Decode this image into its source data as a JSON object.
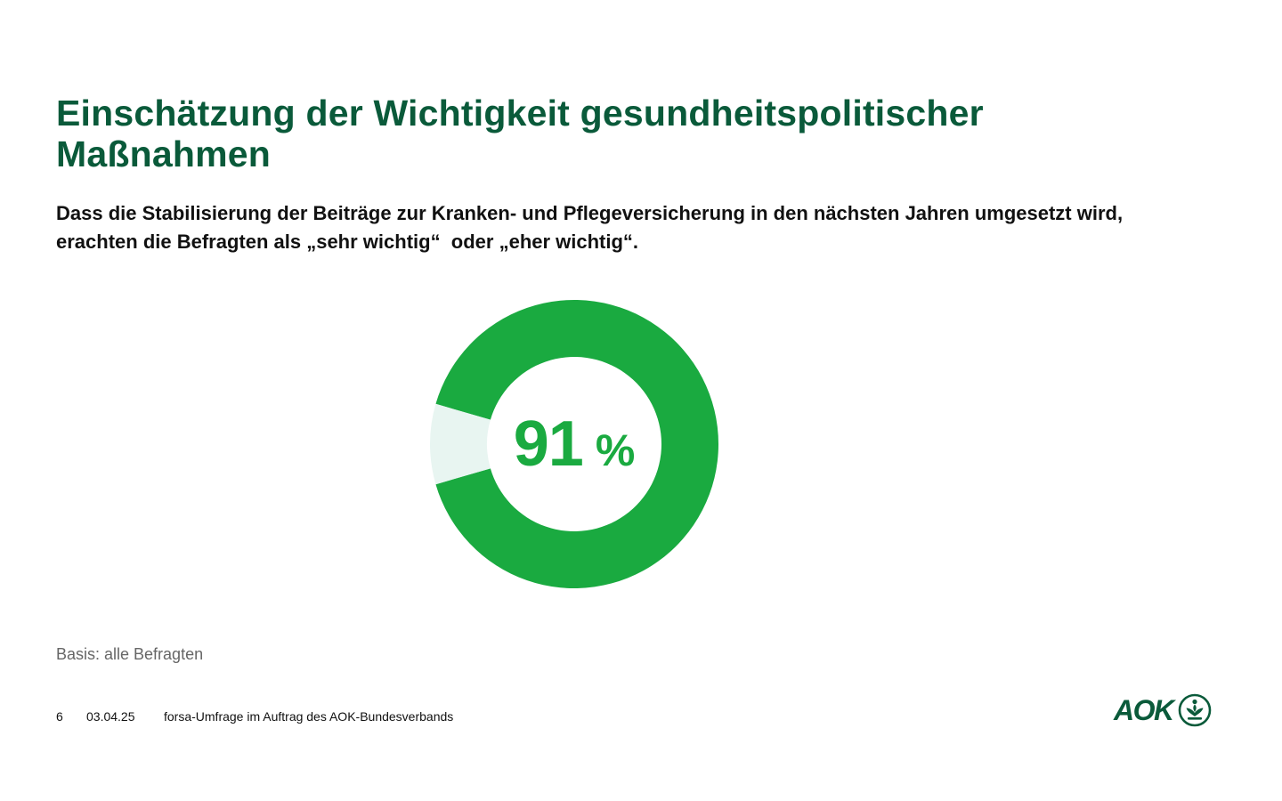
{
  "slide": {
    "title": "Einschätzung der Wichtigkeit gesundheitspolitischer Maßnahmen",
    "subtitle": "Dass die Stabilisierung der Beiträge zur Kranken- und Pflegeversicherung in den nächsten Jahren umgesetzt wird, erachten die Befragten als „sehr wichtig“  oder „eher wichtig“.",
    "basis": "Basis: alle Befragten"
  },
  "footer": {
    "page_number": "6",
    "date": "03.04.25",
    "source": "forsa-Umfrage im Auftrag des AOK-Bundesverbands"
  },
  "logo": {
    "text": "AOK",
    "emblem_icon": "aok-tree-emblem-icon"
  },
  "colors": {
    "title": "#0a5a3a",
    "accent": "#1aaa40",
    "remainder": "#e8f5f1",
    "logo": "#0a5a3a"
  },
  "chart_data": {
    "type": "pie",
    "variant": "donut",
    "labels": [
      "",
      ""
    ],
    "values": [
      91,
      9
    ],
    "unit": "%",
    "center_label": {
      "number": "91",
      "unit": "%"
    }
  }
}
